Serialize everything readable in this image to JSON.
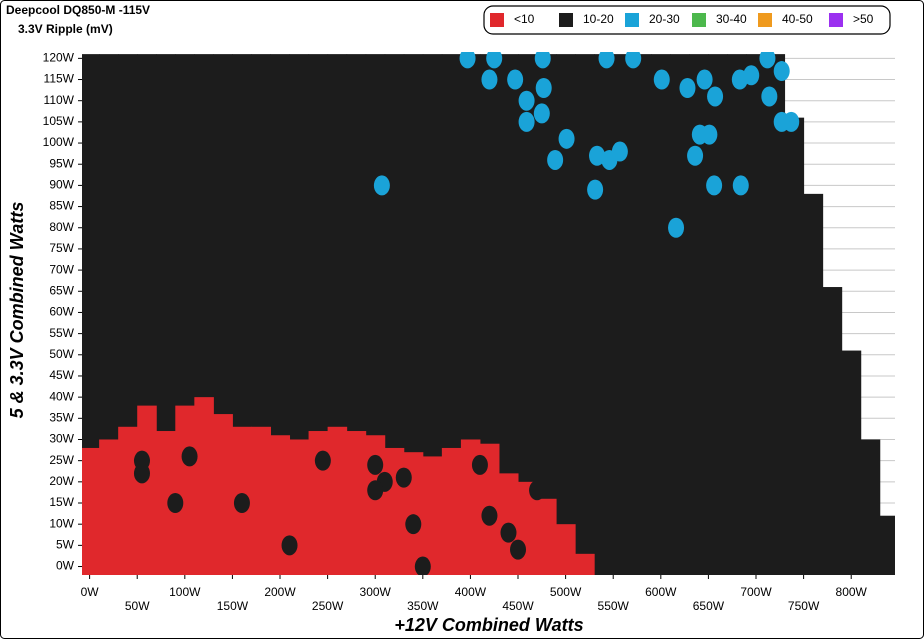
{
  "chart_data": {
    "type": "heatmap",
    "title": "Deepcool DQ850-M -115V",
    "subtitle": "3.3V Ripple (mV)",
    "x_label": "+12V Combined Watts",
    "y_label": "5 & 3.3V Combined Watts",
    "xlim": [
      -8,
      846
    ],
    "ylim": [
      -2,
      121.5
    ],
    "xticks": [
      {
        "value": 0,
        "label": "0W"
      },
      {
        "value": 50,
        "label": "50W"
      },
      {
        "value": 100,
        "label": "100W"
      },
      {
        "value": 150,
        "label": "150W"
      },
      {
        "value": 200,
        "label": "200W"
      },
      {
        "value": 250,
        "label": "250W"
      },
      {
        "value": 300,
        "label": "300W"
      },
      {
        "value": 350,
        "label": "350W"
      },
      {
        "value": 400,
        "label": "400W"
      },
      {
        "value": 450,
        "label": "450W"
      },
      {
        "value": 500,
        "label": "500W"
      },
      {
        "value": 550,
        "label": "550W"
      },
      {
        "value": 600,
        "label": "600W"
      },
      {
        "value": 650,
        "label": "650W"
      },
      {
        "value": 700,
        "label": "700W"
      },
      {
        "value": 750,
        "label": "750W"
      },
      {
        "value": 800,
        "label": "800W"
      }
    ],
    "yticks": [
      {
        "value": 0,
        "label": "0W"
      },
      {
        "value": 5,
        "label": "5W"
      },
      {
        "value": 10,
        "label": "10W"
      },
      {
        "value": 15,
        "label": "15W"
      },
      {
        "value": 20,
        "label": "20W"
      },
      {
        "value": 25,
        "label": "25W"
      },
      {
        "value": 30,
        "label": "30W"
      },
      {
        "value": 35,
        "label": "35W"
      },
      {
        "value": 40,
        "label": "40W"
      },
      {
        "value": 45,
        "label": "45W"
      },
      {
        "value": 50,
        "label": "50W"
      },
      {
        "value": 55,
        "label": "55W"
      },
      {
        "value": 60,
        "label": "60W"
      },
      {
        "value": 65,
        "label": "65W"
      },
      {
        "value": 70,
        "label": "70W"
      },
      {
        "value": 75,
        "label": "75W"
      },
      {
        "value": 80,
        "label": "80W"
      },
      {
        "value": 85,
        "label": "85W"
      },
      {
        "value": 90,
        "label": "90W"
      },
      {
        "value": 95,
        "label": "95W"
      },
      {
        "value": 100,
        "label": "100W"
      },
      {
        "value": 105,
        "label": "105W"
      },
      {
        "value": 110,
        "label": "110W"
      },
      {
        "value": 115,
        "label": "115W"
      },
      {
        "value": 120,
        "label": "120W"
      }
    ],
    "grid": true,
    "x": [
      0,
      20,
      40,
      60,
      80,
      100,
      120,
      140,
      160,
      180,
      200,
      220,
      240,
      260,
      280,
      300,
      320,
      340,
      360,
      380,
      400,
      420,
      440,
      460,
      480,
      500,
      520,
      540,
      560,
      580,
      600,
      620,
      640,
      660,
      680,
      700,
      720,
      740,
      760,
      780,
      800,
      820,
      840
    ],
    "series": [
      {
        "name": "<10",
        "color": "#e0282c",
        "top": [
          28,
          30,
          33,
          38,
          32,
          38,
          40,
          36,
          33,
          33,
          31,
          30,
          32,
          33,
          32,
          31,
          28,
          27,
          26,
          28,
          30,
          29,
          22,
          20,
          16,
          10,
          3,
          null,
          null,
          null,
          null,
          null,
          null,
          null,
          null,
          null,
          null,
          null,
          null,
          null,
          null,
          null,
          null
        ],
        "spot_x": [],
        "spot_y": []
      },
      {
        "name": "10-20",
        "color": "#1c1c1c",
        "top": [
          121,
          121,
          121,
          121,
          121,
          121,
          121,
          121,
          121,
          121,
          121,
          121,
          121,
          121,
          121,
          121,
          121,
          121,
          121,
          121,
          121,
          121,
          121,
          121,
          121,
          121,
          121,
          121,
          121,
          121,
          121,
          121,
          121,
          121,
          121,
          121,
          121,
          106,
          88,
          66,
          51,
          30,
          12
        ],
        "spot_x": [
          55,
          55,
          105,
          245,
          300,
          310,
          300,
          330,
          420,
          440,
          450,
          410,
          470,
          90,
          160,
          210,
          340,
          350
        ],
        "spot_y": [
          25,
          22,
          26,
          25,
          24,
          20,
          18,
          21,
          12,
          8,
          4,
          24,
          18,
          15,
          15,
          5,
          10,
          0
        ]
      },
      {
        "name": "20-30",
        "color": "#1aa3d8",
        "spot_x": [
          397,
          425,
          476,
          543,
          571,
          420,
          447,
          459,
          477,
          475,
          459,
          501,
          489,
          533,
          557,
          546,
          531,
          601,
          628,
          646,
          657,
          683,
          695,
          712,
          727,
          714,
          737,
          727,
          641,
          651,
          636,
          656,
          684,
          307,
          616
        ],
        "spot_y": [
          120,
          120,
          120,
          120,
          120,
          115,
          115,
          110,
          113,
          107,
          105,
          101,
          96,
          97,
          98,
          96,
          89,
          115,
          113,
          115,
          111,
          115,
          116,
          120,
          117,
          111,
          105,
          105,
          102,
          102,
          97,
          90,
          90,
          90,
          80
        ]
      },
      {
        "name": "30-40",
        "color": "#4cb84c"
      },
      {
        "name": "40-50",
        "color": "#ef9a1e"
      },
      {
        "name": ">50",
        "color": "#9b30f0"
      }
    ]
  }
}
